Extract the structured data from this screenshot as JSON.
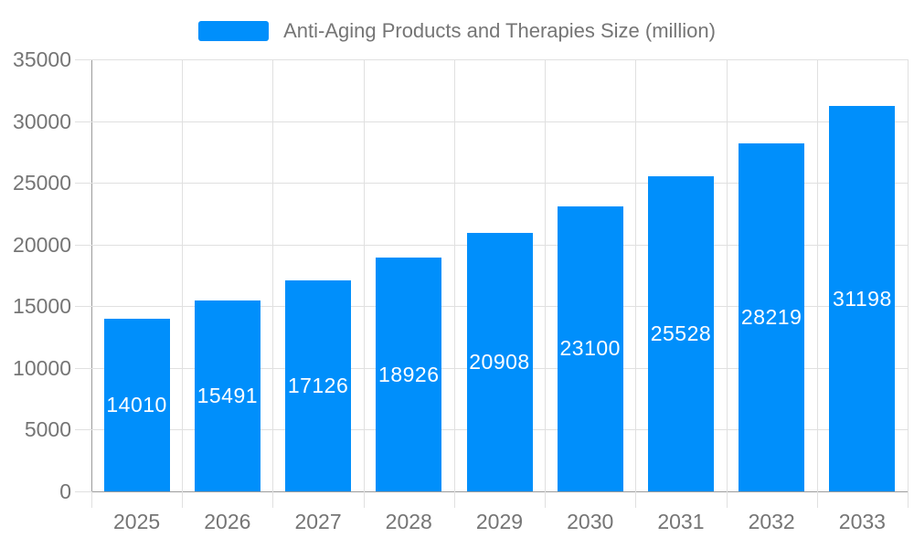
{
  "chart_data": {
    "type": "bar",
    "title": "Anti-Aging Products and Therapies Size (million)",
    "categories": [
      "2025",
      "2026",
      "2027",
      "2028",
      "2029",
      "2030",
      "2031",
      "2032",
      "2033"
    ],
    "series": [
      {
        "values": [
          14010,
          15491,
          17126,
          18926,
          20908,
          23100,
          25528,
          28219,
          31198
        ],
        "color": "#008FFB"
      }
    ],
    "ylim": [
      0,
      35000
    ],
    "yticks": [
      0,
      5000,
      10000,
      15000,
      20000,
      25000,
      30000,
      35000
    ],
    "grid": true,
    "legend_position": "top",
    "value_label_position": "inside-center",
    "colors": {
      "bar": "#008FFB",
      "axis_text": "#757575",
      "value_label_text": "#FFFFFF",
      "grid_line": "#E0E0E0",
      "axis_line": "#9B9B9B"
    }
  }
}
